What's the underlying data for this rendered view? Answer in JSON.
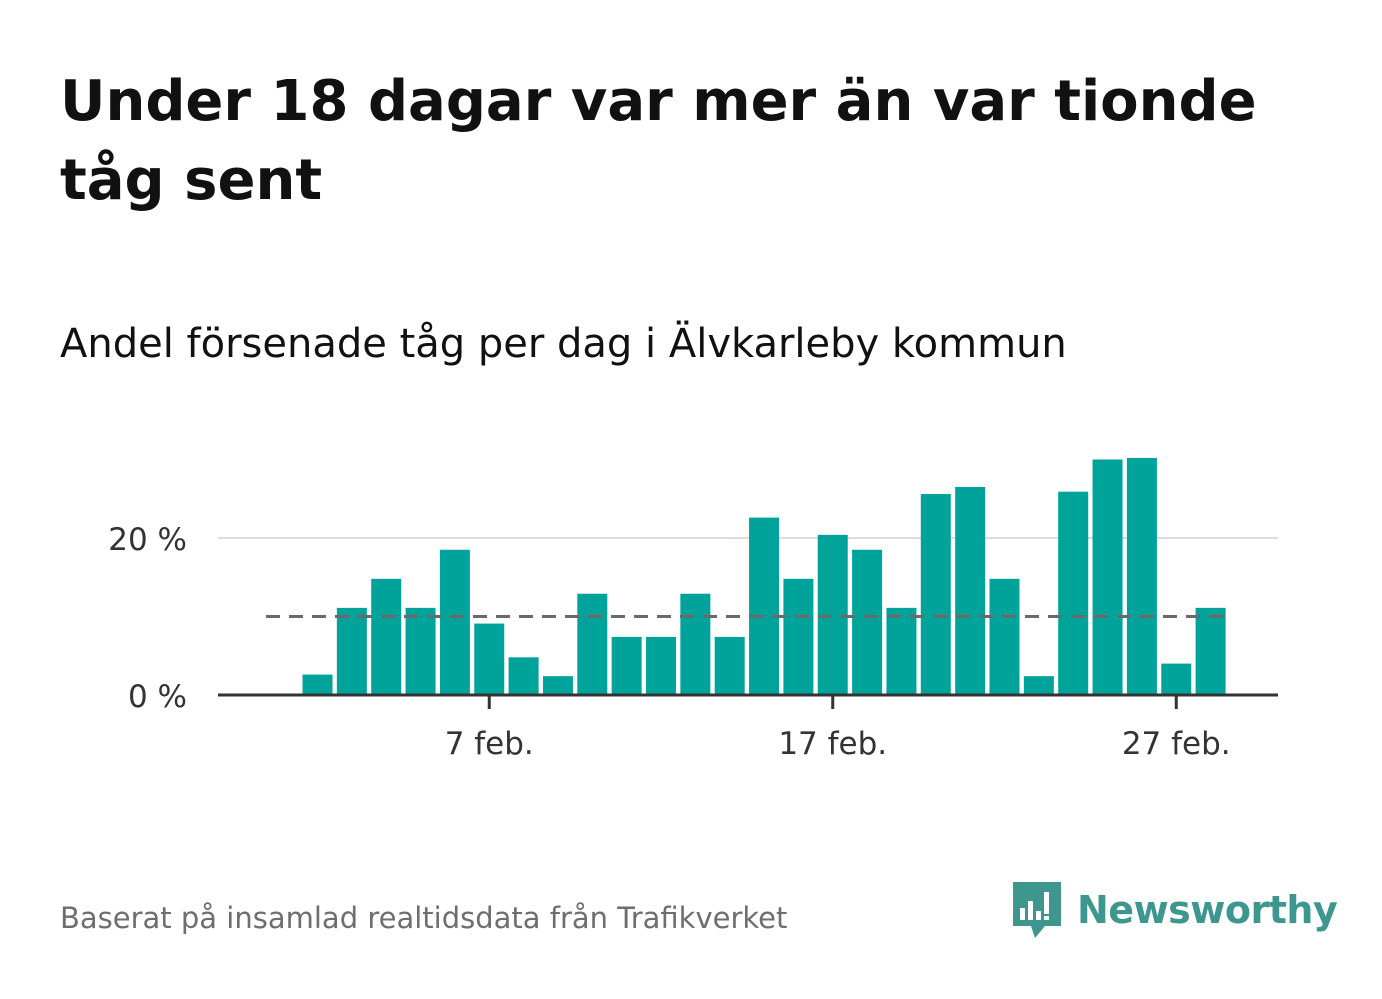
{
  "title": "Under 18 dagar var mer än var tionde tåg sent",
  "subtitle": "Andel försenade tåg per dag i Älvkarleby kommun",
  "source": "Baserat på insamlad realtidsdata från Trafikverket",
  "brand": "Newsworthy",
  "colors": {
    "bar": "#00a39a",
    "reference_line": "#6a6a6a",
    "grid": "#dddddd",
    "axis": "#333333",
    "brand": "#3e978f"
  },
  "chart_data": {
    "type": "bar",
    "x": [
      "2 feb.",
      "3 feb.",
      "4 feb.",
      "5 feb.",
      "6 feb.",
      "7 feb.",
      "8 feb.",
      "9 feb.",
      "10 feb.",
      "11 feb.",
      "12 feb.",
      "13 feb.",
      "14 feb.",
      "15 feb.",
      "16 feb.",
      "17 feb.",
      "18 feb.",
      "19 feb.",
      "20 feb.",
      "21 feb.",
      "22 feb.",
      "23 feb.",
      "24 feb.",
      "25 feb.",
      "26 feb.",
      "27 feb.",
      "28 feb."
    ],
    "values": [
      2.6,
      11.1,
      14.8,
      11.1,
      18.5,
      9.1,
      4.8,
      2.4,
      12.9,
      7.4,
      7.4,
      12.9,
      7.4,
      22.6,
      14.8,
      20.4,
      18.5,
      11.1,
      25.6,
      26.5,
      14.8,
      2.4,
      25.9,
      30.0,
      30.2,
      4.0,
      11.1
    ],
    "y_ticks": [
      0,
      20
    ],
    "y_tick_labels": [
      "0 %",
      "20 %"
    ],
    "x_tick_labels": [
      "7 feb.",
      "17 feb.",
      "27 feb."
    ],
    "x_tick_dates": [
      "7 feb.",
      "17 feb.",
      "27 feb."
    ],
    "reference_line": 10,
    "ylim": [
      0,
      31
    ],
    "grid": true
  }
}
